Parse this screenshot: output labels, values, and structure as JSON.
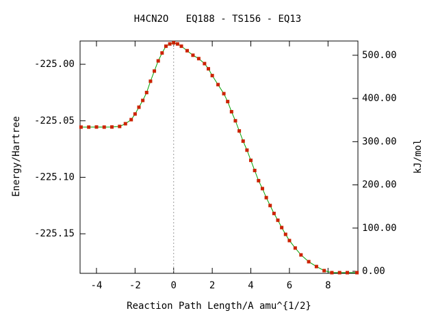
{
  "chart_data": {
    "type": "line",
    "title": "H4CN2O   EQ188 - TS156 - EQ13",
    "x_label": "Reaction Path Length/A amu^{1/2}",
    "y_label": "Energy/Hartree",
    "y2_label": "kJ/mol",
    "x": [
      -4.8,
      -4.4,
      -4.0,
      -3.6,
      -3.2,
      -2.8,
      -2.5,
      -2.2,
      -2.0,
      -1.8,
      -1.6,
      -1.4,
      -1.2,
      -1.0,
      -0.8,
      -0.6,
      -0.4,
      -0.2,
      0,
      0.2,
      0.4,
      0.7,
      1.0,
      1.3,
      1.6,
      1.8,
      2.0,
      2.3,
      2.6,
      2.8,
      3.0,
      3.2,
      3.4,
      3.6,
      3.8,
      4.0,
      4.2,
      4.4,
      4.6,
      4.8,
      5.0,
      5.2,
      5.4,
      5.6,
      5.8,
      6.0,
      6.3,
      6.6,
      7.0,
      7.4,
      7.8,
      8.2,
      8.6,
      9.0,
      9.5
    ],
    "values": [
      -225.0556,
      -225.0556,
      -225.0555,
      -225.0556,
      -225.0555,
      -225.055,
      -225.0526,
      -225.049,
      -225.044,
      -225.038,
      -225.032,
      -225.025,
      -225.015,
      -225.006,
      -224.997,
      -224.99,
      -224.984,
      -224.982,
      -224.981,
      -224.982,
      -224.984,
      -224.988,
      -224.992,
      -224.995,
      -224.9994,
      -225.004,
      -225.01,
      -225.018,
      -225.026,
      -225.033,
      -225.042,
      -225.05,
      -225.059,
      -225.068,
      -225.076,
      -225.085,
      -225.094,
      -225.103,
      -225.11,
      -225.118,
      -225.125,
      -225.132,
      -225.138,
      -225.1445,
      -225.1505,
      -225.156,
      -225.1626,
      -225.1687,
      -225.1747,
      -225.179,
      -225.1826,
      -225.1844,
      -225.1844,
      -225.1844,
      -225.1844
    ],
    "color": "#cc2200",
    "line_color": "#00a000",
    "xlim": [
      -4.85,
      9.55
    ],
    "xticks": [
      -4,
      -2,
      0,
      2,
      4,
      6,
      8
    ],
    "ylim": [
      -225.185,
      -224.9794
    ],
    "yticks": [
      {
        "value": -225.0,
        "label": "-225.00"
      },
      {
        "value": -225.05,
        "label": "-225.05"
      },
      {
        "value": -225.1,
        "label": "-225.10"
      },
      {
        "value": -225.15,
        "label": "-225.15"
      }
    ],
    "y2lim": [
      -4.7,
      533
    ],
    "y2ticks": [
      {
        "value": 0,
        "label": "0.00"
      },
      {
        "value": 100,
        "label": "100.00"
      },
      {
        "value": 200,
        "label": "200.00"
      },
      {
        "value": 300,
        "label": "300.00"
      },
      {
        "value": 400,
        "label": "400.00"
      },
      {
        "value": 500,
        "label": "500.00"
      }
    ],
    "vline_x": 0
  }
}
